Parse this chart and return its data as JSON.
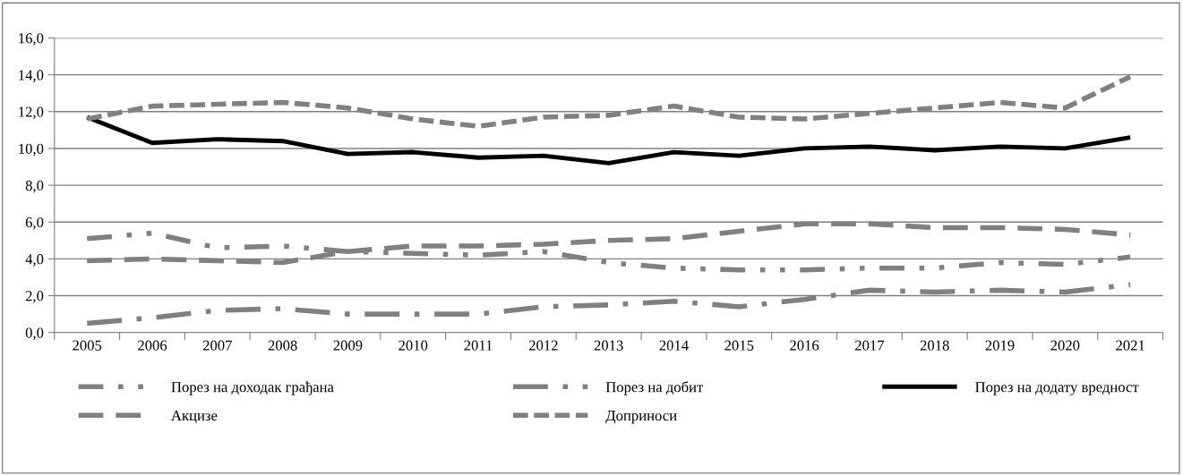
{
  "chart_data": {
    "type": "line",
    "categories": [
      "2005",
      "2006",
      "2007",
      "2008",
      "2009",
      "2010",
      "2011",
      "2012",
      "2013",
      "2014",
      "2015",
      "2016",
      "2017",
      "2018",
      "2019",
      "2020",
      "2021"
    ],
    "series": [
      {
        "name": "Порез на доходак грађана",
        "color": "#808080",
        "line_style": "dashdotdot",
        "values": [
          5.1,
          5.4,
          4.6,
          4.7,
          4.4,
          4.3,
          4.2,
          4.4,
          3.8,
          3.5,
          3.4,
          3.4,
          3.5,
          3.5,
          3.8,
          3.7,
          4.1
        ]
      },
      {
        "name": "Порез на добит",
        "color": "#808080",
        "line_style": "longdashdot",
        "values": [
          0.5,
          0.8,
          1.2,
          1.3,
          1.0,
          1.0,
          1.0,
          1.4,
          1.5,
          1.7,
          1.4,
          1.8,
          2.3,
          2.2,
          2.3,
          2.2,
          2.6
        ]
      },
      {
        "name": "Порез на додату вредност",
        "color": "#000000",
        "line_style": "solid",
        "values": [
          11.7,
          10.3,
          10.5,
          10.4,
          9.7,
          9.8,
          9.5,
          9.6,
          9.2,
          9.8,
          9.6,
          10.0,
          10.1,
          9.9,
          10.1,
          10.0,
          10.6
        ]
      },
      {
        "name": "Акцизе",
        "color": "#808080",
        "line_style": "longdash",
        "values": [
          3.9,
          4.0,
          3.9,
          3.8,
          4.4,
          4.7,
          4.7,
          4.8,
          5.0,
          5.1,
          5.5,
          5.9,
          5.9,
          5.7,
          5.7,
          5.6,
          5.3
        ]
      },
      {
        "name": "Доприноси",
        "color": "#808080",
        "line_style": "dashed",
        "values": [
          11.6,
          12.3,
          12.4,
          12.5,
          12.2,
          11.6,
          11.2,
          11.7,
          11.8,
          12.3,
          11.7,
          11.6,
          11.9,
          12.2,
          12.5,
          12.2,
          13.9
        ]
      }
    ],
    "ylim": [
      0,
      16
    ],
    "yticks": [
      {
        "value": 0,
        "label": "0,0"
      },
      {
        "value": 2,
        "label": "2,0"
      },
      {
        "value": 4,
        "label": "4,0"
      },
      {
        "value": 6,
        "label": "6,0"
      },
      {
        "value": 8,
        "label": "8,0"
      },
      {
        "value": 10,
        "label": "10,0"
      },
      {
        "value": 12,
        "label": "12,0"
      },
      {
        "value": 14,
        "label": "14,0"
      },
      {
        "value": 16,
        "label": "16,0"
      }
    ],
    "grid": "y",
    "legend": "bottom",
    "marker": "none"
  }
}
